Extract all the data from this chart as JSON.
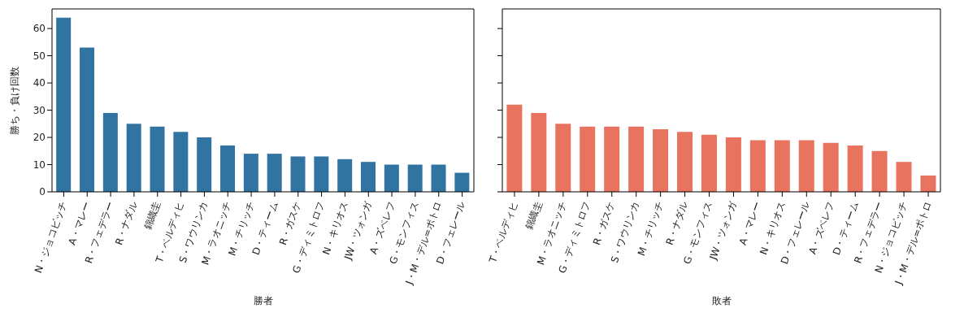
{
  "chart_data": [
    {
      "type": "bar",
      "xlabel": "勝者",
      "ylabel": "勝ち・負け回数",
      "categories": [
        "N・ジョコビッチ",
        "A・マレー",
        "R・フェデラー",
        "R・ナダル",
        "錦織圭",
        "T・ベルディヒ",
        "S・ワウリンカ",
        "M・ラオニッチ",
        "M・チリッチ",
        "D・ティーム",
        "R・ガスケ",
        "G・ディミトロフ",
        "N・キリオス",
        "JW・ツォンガ",
        "A・ズベレフ",
        "G・モンフィス",
        "J・M・デル=ポトロ",
        "D・フェレール"
      ],
      "values": [
        64,
        53,
        29,
        25,
        24,
        22,
        20,
        17,
        14,
        14,
        13,
        13,
        12,
        11,
        10,
        10,
        10,
        7
      ],
      "color": "#3274a1",
      "ylim": [
        0,
        67.2
      ],
      "yticks": [
        0,
        10,
        20,
        30,
        40,
        50,
        60
      ]
    },
    {
      "type": "bar",
      "xlabel": "敗者",
      "categories": [
        "T・ベルディヒ",
        "錦織圭",
        "M・ラオニッチ",
        "G・ディミトロフ",
        "R・ガスケ",
        "S・ワウリンカ",
        "M・チリッチ",
        "R・ナダル",
        "G・モンフィス",
        "JW・ツォンガ",
        "A・マレー",
        "N・キリオス",
        "D・フェレール",
        "A・ズベレフ",
        "D・ティーム",
        "R・フェデラー",
        "N・ジョコビッチ",
        "J・M・デル=ポトロ"
      ],
      "values": [
        32,
        29,
        25,
        24,
        24,
        24,
        23,
        22,
        21,
        20,
        19,
        19,
        19,
        18,
        17,
        15,
        11,
        6
      ],
      "color": "#e8735f",
      "ylim": [
        0,
        67.2
      ],
      "yticks": [
        0,
        10,
        20,
        30,
        40,
        50,
        60
      ],
      "tick_labels": "x"
    }
  ]
}
